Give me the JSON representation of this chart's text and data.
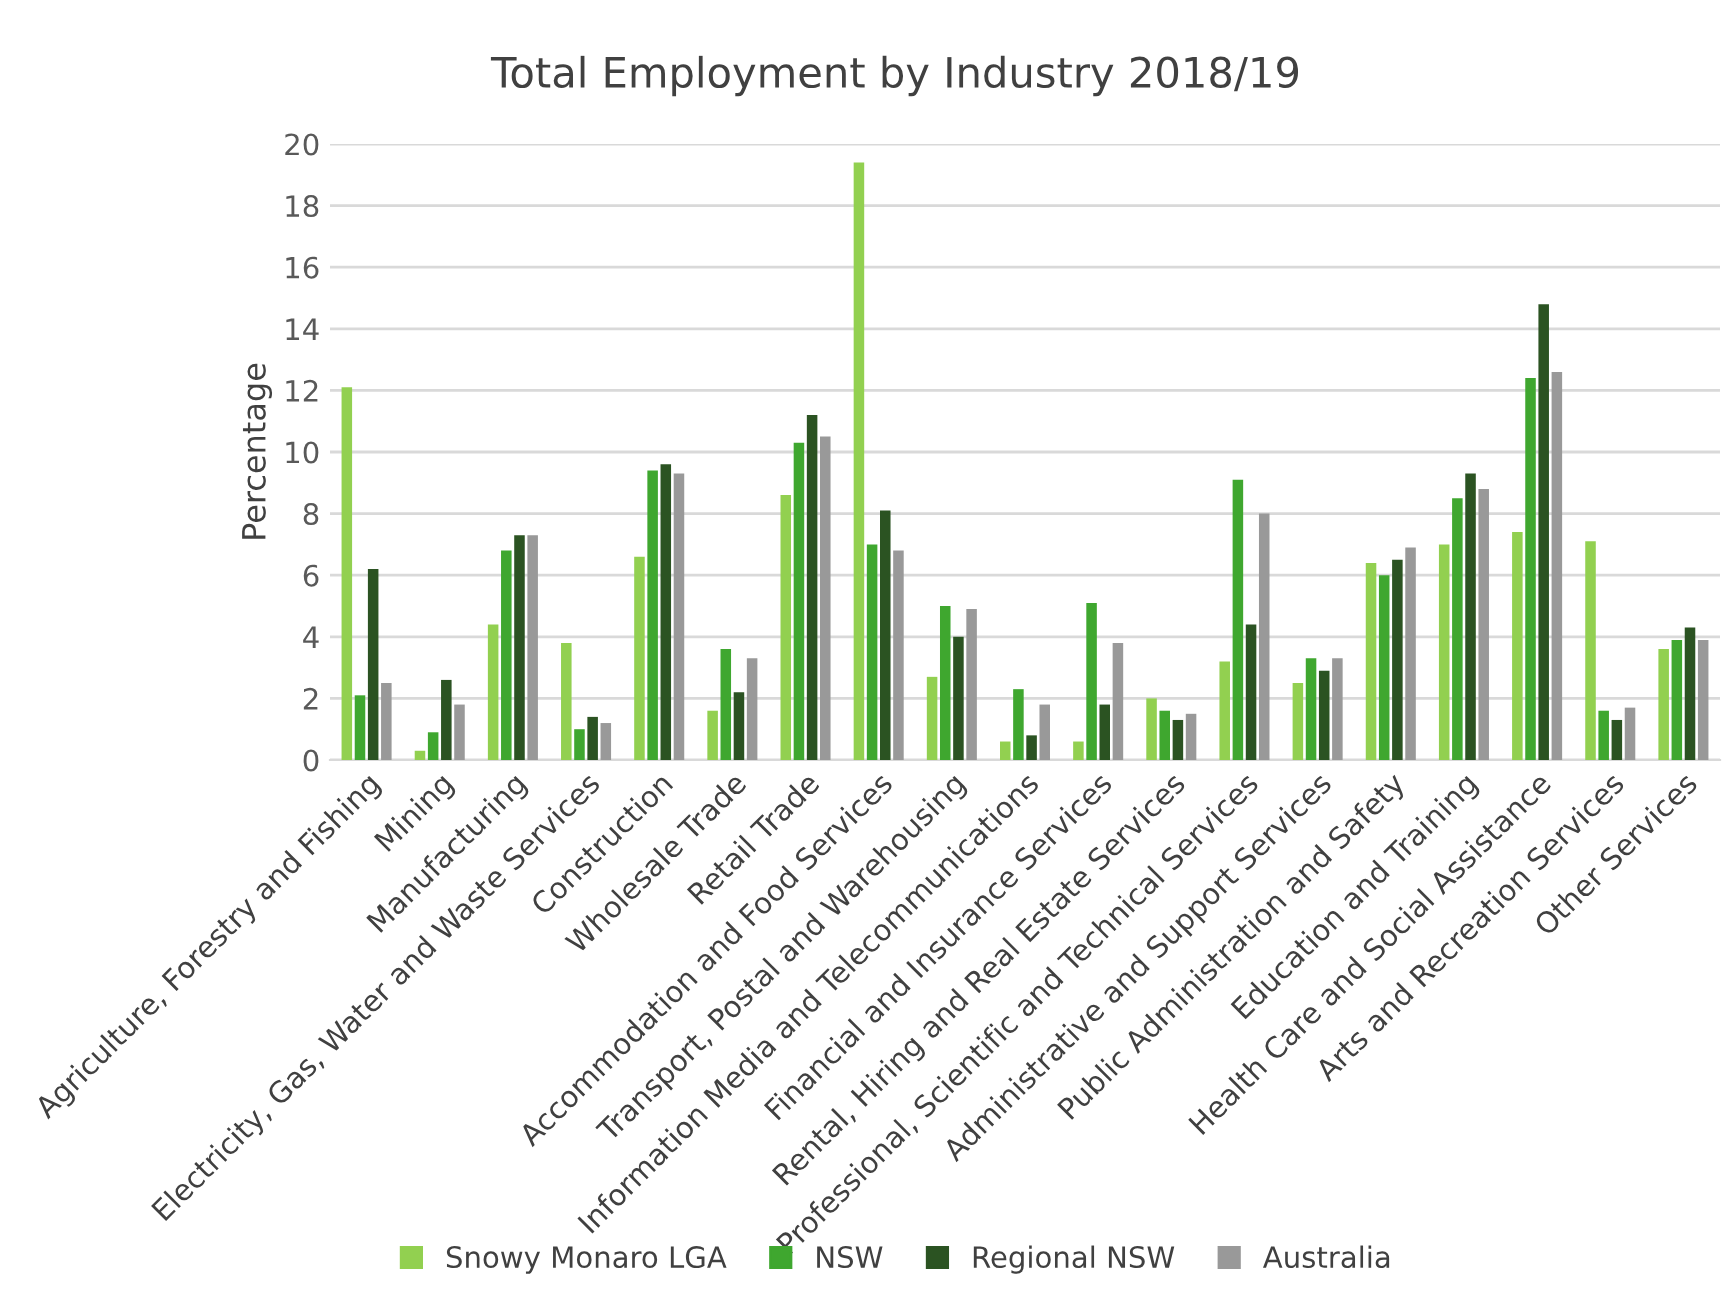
{
  "chart_data": {
    "type": "bar",
    "title": "Total Employment by Industry 2018/19",
    "ylabel": "Percentage",
    "categories": [
      "Agriculture, Forestry and Fishing",
      "Mining",
      "Manufacturing",
      "Electricity, Gas, Water and Waste Services",
      "Construction",
      "Wholesale Trade",
      "Retail Trade",
      "Accommodation and Food Services",
      "Transport, Postal and Warehousing",
      "Information Media and Telecommunications",
      "Financial and Insurance Services",
      "Rental, Hiring and Real Estate Services",
      "Professional, Scientific and Technical Services",
      "Administrative and Support Services",
      "Public Administration and Safety",
      "Education and Training",
      "Health Care and Social Assistance",
      "Arts and Recreation Services",
      "Other Services"
    ],
    "series": [
      {
        "name": "Snowy Monaro LGA",
        "color": "#92d050",
        "values": [
          12.1,
          0.3,
          4.4,
          3.8,
          6.6,
          1.6,
          8.6,
          19.4,
          2.7,
          0.6,
          0.6,
          2.0,
          3.2,
          2.5,
          6.4,
          7.0,
          7.4,
          7.1,
          3.6
        ]
      },
      {
        "name": "NSW",
        "color": "#3fa72f",
        "values": [
          2.1,
          0.9,
          6.8,
          1.0,
          9.4,
          3.6,
          10.3,
          7.0,
          5.0,
          2.3,
          5.1,
          1.6,
          9.1,
          3.3,
          6.0,
          8.5,
          12.4,
          1.6,
          3.9
        ]
      },
      {
        "name": "Regional NSW",
        "color": "#2b5322",
        "values": [
          6.2,
          2.6,
          7.3,
          1.4,
          9.6,
          2.2,
          11.2,
          8.1,
          4.0,
          0.8,
          1.8,
          1.3,
          4.4,
          2.9,
          6.5,
          9.3,
          14.8,
          1.3,
          4.3
        ]
      },
      {
        "name": "Australia",
        "color": "#999999",
        "values": [
          2.5,
          1.8,
          7.3,
          1.2,
          9.3,
          3.3,
          10.5,
          6.8,
          4.9,
          1.8,
          3.8,
          1.5,
          8.0,
          3.3,
          6.9,
          8.8,
          12.6,
          1.7,
          3.9
        ]
      }
    ],
    "ylim": [
      0,
      20
    ],
    "yticks": [
      0,
      2,
      4,
      6,
      8,
      10,
      12,
      14,
      16,
      18,
      20
    ],
    "grid": "y",
    "legend": "bottom"
  }
}
